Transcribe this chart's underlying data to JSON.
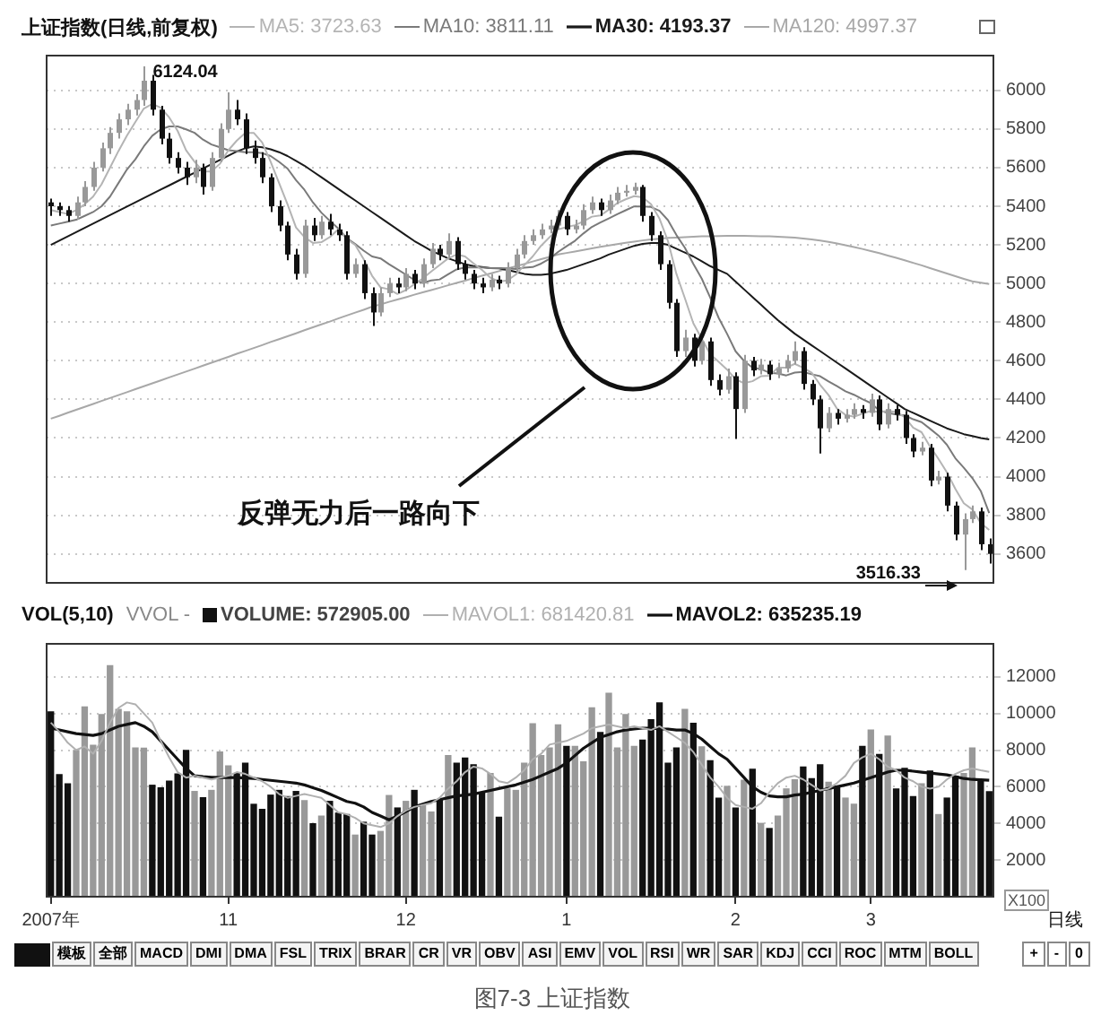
{
  "chart_data": [
    {
      "type": "candlestick",
      "title": "上证指数(日线,前复权)",
      "ohlc": [
        [
          5420,
          5440,
          5350,
          5400
        ],
        [
          5400,
          5420,
          5350,
          5380
        ],
        [
          5380,
          5400,
          5320,
          5350
        ],
        [
          5350,
          5450,
          5330,
          5420
        ],
        [
          5420,
          5530,
          5400,
          5500
        ],
        [
          5500,
          5630,
          5480,
          5600
        ],
        [
          5600,
          5730,
          5580,
          5700
        ],
        [
          5700,
          5810,
          5670,
          5780
        ],
        [
          5780,
          5880,
          5750,
          5850
        ],
        [
          5850,
          5930,
          5820,
          5900
        ],
        [
          5900,
          5980,
          5870,
          5950
        ],
        [
          5950,
          6124.04,
          5920,
          6050
        ],
        [
          6050,
          6080,
          5870,
          5900
        ],
        [
          5900,
          5920,
          5720,
          5750
        ],
        [
          5750,
          5780,
          5620,
          5650
        ],
        [
          5650,
          5680,
          5570,
          5600
        ],
        [
          5600,
          5630,
          5510,
          5550
        ],
        [
          5550,
          5640,
          5520,
          5600
        ],
        [
          5600,
          5620,
          5460,
          5500
        ],
        [
          5500,
          5680,
          5480,
          5650
        ],
        [
          5650,
          5830,
          5630,
          5800
        ],
        [
          5800,
          5990,
          5780,
          5900
        ],
        [
          5900,
          5950,
          5820,
          5850
        ],
        [
          5850,
          5880,
          5670,
          5700
        ],
        [
          5700,
          5740,
          5620,
          5650
        ],
        [
          5650,
          5680,
          5520,
          5550
        ],
        [
          5550,
          5570,
          5370,
          5400
        ],
        [
          5400,
          5430,
          5270,
          5300
        ],
        [
          5300,
          5320,
          5120,
          5150
        ],
        [
          5150,
          5180,
          5020,
          5050
        ],
        [
          5050,
          5330,
          5030,
          5300
        ],
        [
          5300,
          5340,
          5220,
          5250
        ],
        [
          5250,
          5350,
          5230,
          5320
        ],
        [
          5320,
          5360,
          5250,
          5280
        ],
        [
          5280,
          5310,
          5220,
          5250
        ],
        [
          5250,
          5270,
          5020,
          5050
        ],
        [
          5050,
          5130,
          5030,
          5100
        ],
        [
          5100,
          5120,
          4920,
          4950
        ],
        [
          4950,
          4980,
          4780,
          4850
        ],
        [
          4850,
          4980,
          4830,
          4950
        ],
        [
          4950,
          5030,
          4930,
          5000
        ],
        [
          5000,
          5030,
          4950,
          4980
        ],
        [
          4980,
          5080,
          4960,
          5050
        ],
        [
          5050,
          5070,
          4970,
          5000
        ],
        [
          5000,
          5130,
          4980,
          5100
        ],
        [
          5100,
          5210,
          5080,
          5180
        ],
        [
          5180,
          5200,
          5120,
          5150
        ],
        [
          5150,
          5260,
          5130,
          5220
        ],
        [
          5220,
          5240,
          5070,
          5100
        ],
        [
          5100,
          5120,
          5020,
          5050
        ],
        [
          5050,
          5070,
          4970,
          5000
        ],
        [
          5000,
          5030,
          4950,
          4980
        ],
        [
          4980,
          5050,
          4960,
          5020
        ],
        [
          5020,
          5040,
          4970,
          5000
        ],
        [
          5000,
          5110,
          4980,
          5080
        ],
        [
          5080,
          5180,
          5060,
          5150
        ],
        [
          5150,
          5250,
          5130,
          5220
        ],
        [
          5220,
          5280,
          5200,
          5250
        ],
        [
          5250,
          5310,
          5230,
          5280
        ],
        [
          5280,
          5330,
          5260,
          5300
        ],
        [
          5300,
          5380,
          5280,
          5350
        ],
        [
          5350,
          5370,
          5250,
          5280
        ],
        [
          5280,
          5330,
          5260,
          5300
        ],
        [
          5300,
          5410,
          5280,
          5380
        ],
        [
          5380,
          5450,
          5360,
          5420
        ],
        [
          5420,
          5440,
          5350,
          5380
        ],
        [
          5380,
          5460,
          5360,
          5430
        ],
        [
          5430,
          5500,
          5410,
          5470
        ],
        [
          5470,
          5510,
          5450,
          5480
        ],
        [
          5480,
          5522,
          5460,
          5500
        ],
        [
          5500,
          5510,
          5320,
          5350
        ],
        [
          5350,
          5370,
          5220,
          5250
        ],
        [
          5250,
          5270,
          5070,
          5100
        ],
        [
          5100,
          5120,
          4870,
          4900
        ],
        [
          4900,
          4920,
          4620,
          4650
        ],
        [
          4650,
          4760,
          4620,
          4720
        ],
        [
          4720,
          4740,
          4570,
          4600
        ],
        [
          4600,
          4730,
          4580,
          4700
        ],
        [
          4700,
          4720,
          4470,
          4500
        ],
        [
          4500,
          4530,
          4420,
          4450
        ],
        [
          4450,
          4560,
          4430,
          4520
        ],
        [
          4520,
          4540,
          4195,
          4350
        ],
        [
          4350,
          4630,
          4330,
          4600
        ],
        [
          4600,
          4620,
          4520,
          4550
        ],
        [
          4550,
          4610,
          4530,
          4580
        ],
        [
          4580,
          4600,
          4500,
          4530
        ],
        [
          4530,
          4590,
          4510,
          4560
        ],
        [
          4560,
          4630,
          4540,
          4600
        ],
        [
          4600,
          4700,
          4580,
          4650
        ],
        [
          4650,
          4670,
          4450,
          4480
        ],
        [
          4480,
          4500,
          4370,
          4400
        ],
        [
          4400,
          4420,
          4120,
          4250
        ],
        [
          4250,
          4360,
          4230,
          4330
        ],
        [
          4330,
          4350,
          4270,
          4300
        ],
        [
          4300,
          4350,
          4280,
          4320
        ],
        [
          4320,
          4380,
          4300,
          4350
        ],
        [
          4350,
          4370,
          4300,
          4330
        ],
        [
          4330,
          4430,
          4310,
          4400
        ],
        [
          4400,
          4420,
          4240,
          4270
        ],
        [
          4270,
          4380,
          4250,
          4350
        ],
        [
          4350,
          4370,
          4290,
          4320
        ],
        [
          4320,
          4340,
          4170,
          4200
        ],
        [
          4200,
          4220,
          4100,
          4130
        ],
        [
          4130,
          4180,
          4110,
          4150
        ],
        [
          4150,
          4170,
          3950,
          3980
        ],
        [
          3980,
          4030,
          3960,
          4000
        ],
        [
          4000,
          4020,
          3820,
          3850
        ],
        [
          3850,
          3870,
          3670,
          3700
        ],
        [
          3700,
          3810,
          3516.33,
          3780
        ],
        [
          3780,
          3850,
          3760,
          3820
        ],
        [
          3820,
          3840,
          3620,
          3650
        ],
        [
          3650,
          3680,
          3550,
          3600
        ]
      ],
      "colors": [
        "#111111",
        "#111111",
        "#111111",
        "#999999",
        "#999999",
        "#999999",
        "#999999",
        "#999999",
        "#999999",
        "#999999",
        "#999999",
        "#999999",
        "#111111",
        "#111111",
        "#111111",
        "#111111",
        "#111111",
        "#999999",
        "#111111",
        "#999999",
        "#999999",
        "#999999",
        "#111111",
        "#111111",
        "#111111",
        "#111111",
        "#111111",
        "#111111",
        "#111111",
        "#111111",
        "#999999",
        "#111111",
        "#999999",
        "#111111",
        "#111111",
        "#111111",
        "#999999",
        "#111111",
        "#111111",
        "#999999",
        "#999999",
        "#111111",
        "#999999",
        "#111111",
        "#999999",
        "#999999",
        "#111111",
        "#999999",
        "#111111",
        "#111111",
        "#111111",
        "#111111",
        "#999999",
        "#111111",
        "#999999",
        "#999999",
        "#999999",
        "#999999",
        "#999999",
        "#999999",
        "#999999",
        "#111111",
        "#999999",
        "#999999",
        "#999999",
        "#111111",
        "#999999",
        "#999999",
        "#999999",
        "#999999",
        "#111111",
        "#111111",
        "#111111",
        "#111111",
        "#111111",
        "#999999",
        "#111111",
        "#999999",
        "#111111",
        "#111111",
        "#999999",
        "#111111",
        "#999999",
        "#111111",
        "#999999",
        "#111111",
        "#999999",
        "#999999",
        "#999999",
        "#111111",
        "#111111",
        "#111111",
        "#999999",
        "#111111",
        "#999999",
        "#999999",
        "#111111",
        "#999999",
        "#111111",
        "#999999",
        "#111111",
        "#111111",
        "#111111",
        "#999999",
        "#111111",
        "#999999",
        "#111111",
        "#111111",
        "#999999",
        "#999999",
        "#111111",
        "#111111"
      ],
      "series": [
        {
          "name": "MA5: 3723.63",
          "type": "line",
          "color": "#b4b4b4",
          "values": [
            5380,
            5370,
            5360,
            5380,
            5410,
            5450,
            5514,
            5600,
            5686,
            5766,
            5836,
            5906,
            5930,
            5910,
            5860,
            5790,
            5690,
            5630,
            5580,
            5580,
            5620,
            5690,
            5740,
            5780,
            5780,
            5730,
            5630,
            5520,
            5410,
            5290,
            5240,
            5210,
            5214,
            5240,
            5280,
            5230,
            5200,
            5126,
            5040,
            4980,
            4970,
            4946,
            4966,
            4996,
            5026,
            5062,
            5096,
            5130,
            5150,
            5140,
            5104,
            5070,
            5030,
            5010,
            5016,
            5046,
            5094,
            5140,
            5196,
            5240,
            5280,
            5292,
            5302,
            5322,
            5346,
            5352,
            5382,
            5416,
            5436,
            5452,
            5446,
            5410,
            5336,
            5220,
            5050,
            4924,
            4794,
            4714,
            4634,
            4594,
            4554,
            4504,
            4484,
            4494,
            4520,
            4522,
            4564,
            4564,
            4584,
            4564,
            4538,
            4476,
            4422,
            4352,
            4320,
            4310,
            4326,
            4340,
            4334,
            4340,
            4334,
            4308,
            4254,
            4230,
            4156,
            4092,
            4022,
            3936,
            3862,
            3830,
            3760,
            3723.63
          ]
        },
        {
          "name": "MA10: 3811.11",
          "type": "line",
          "color": "#7a7a7a",
          "values": [
            5300,
            5310,
            5320,
            5330,
            5350,
            5370,
            5400,
            5450,
            5520,
            5590,
            5643,
            5710,
            5765,
            5798,
            5813,
            5813,
            5798,
            5780,
            5745,
            5720,
            5705,
            5690,
            5685,
            5680,
            5680,
            5675,
            5660,
            5630,
            5595,
            5535,
            5485,
            5420,
            5367,
            5325,
            5285,
            5235,
            5205,
            5170,
            5140,
            5130,
            5100,
            5073,
            5046,
            5018,
            5003,
            5016,
            5021,
            5048,
            5073,
            5083,
            5083,
            5083,
            5080,
            5080,
            5078,
            5075,
            5082,
            5085,
            5103,
            5128,
            5163,
            5193,
            5221,
            5259,
            5293,
            5316,
            5337,
            5359,
            5379,
            5399,
            5399,
            5396,
            5376,
            5328,
            5251,
            5185,
            5102,
            5025,
            4927,
            4822,
            4739,
            4649,
            4599,
            4564,
            4557,
            4538,
            4534,
            4524,
            4539,
            4542,
            4530,
            4520,
            4493,
            4468,
            4442,
            4424,
            4401,
            4381,
            4343,
            4330,
            4322,
            4317,
            4297,
            4282,
            4248,
            4213,
            4165,
            4095,
            4046,
            3993,
            3926,
            3811.11
          ]
        },
        {
          "name": "MA30: 4193.37",
          "type": "line",
          "color": "#1a1a1a",
          "values": [
            5200,
            5222,
            5244,
            5266,
            5288,
            5310,
            5332,
            5354,
            5376,
            5398,
            5420,
            5442,
            5464,
            5486,
            5508,
            5530,
            5552,
            5574,
            5596,
            5618,
            5640,
            5662,
            5684,
            5700,
            5710,
            5705,
            5695,
            5680,
            5660,
            5635,
            5610,
            5580,
            5550,
            5520,
            5490,
            5460,
            5430,
            5400,
            5370,
            5340,
            5310,
            5280,
            5250,
            5220,
            5195,
            5170,
            5150,
            5130,
            5115,
            5100,
            5090,
            5085,
            5080,
            5078,
            5070,
            5060,
            5050,
            5045,
            5045,
            5050,
            5060,
            5070,
            5085,
            5100,
            5115,
            5130,
            5150,
            5165,
            5180,
            5195,
            5205,
            5210,
            5210,
            5200,
            5180,
            5160,
            5140,
            5115,
            5090,
            5070,
            5050,
            5010,
            4970,
            4930,
            4890,
            4850,
            4810,
            4775,
            4740,
            4710,
            4680,
            4650,
            4620,
            4590,
            4560,
            4530,
            4500,
            4470,
            4440,
            4410,
            4380,
            4350,
            4330,
            4310,
            4290,
            4270,
            4250,
            4235,
            4220,
            4210,
            4200,
            4193.37
          ]
        },
        {
          "name": "MA120: 4997.37",
          "type": "line",
          "color": "#a8a8a8",
          "values": [
            4300,
            4315,
            4331,
            4346,
            4361,
            4376,
            4392,
            4407,
            4422,
            4437,
            4453,
            4468,
            4483,
            4498,
            4514,
            4529,
            4544,
            4559,
            4575,
            4590,
            4605,
            4620,
            4636,
            4651,
            4666,
            4681,
            4697,
            4712,
            4727,
            4742,
            4758,
            4773,
            4788,
            4803,
            4819,
            4834,
            4849,
            4864,
            4880,
            4892,
            4905,
            4917,
            4929,
            4942,
            4954,
            4966,
            4978,
            4991,
            5003,
            5015,
            5028,
            5040,
            5052,
            5064,
            5077,
            5089,
            5101,
            5114,
            5126,
            5138,
            5150,
            5158,
            5166,
            5174,
            5182,
            5190,
            5197,
            5204,
            5211,
            5217,
            5223,
            5228,
            5232,
            5236,
            5238,
            5240,
            5242,
            5244,
            5245,
            5246,
            5247,
            5247,
            5247,
            5246,
            5245,
            5244,
            5242,
            5240,
            5237,
            5233,
            5228,
            5222,
            5215,
            5207,
            5198,
            5189,
            5179,
            5168,
            5157,
            5145,
            5133,
            5120,
            5107,
            5094,
            5080,
            5066,
            5052,
            5038,
            5024,
            5011,
            5004,
            4997.37
          ]
        }
      ],
      "ylim": [
        3450,
        6180
      ],
      "yticks": [
        3600,
        3800,
        4000,
        4200,
        4400,
        4600,
        4800,
        5000,
        5200,
        5400,
        5600,
        5800,
        6000
      ],
      "grid": "y",
      "legend": "top",
      "tick_labels": "y",
      "annotations": [
        "6124.04",
        "3516.33",
        "反弹无力后一路向下"
      ]
    },
    {
      "type": "bar",
      "title": "VOL(5,10)",
      "subtitle": "VVOL -",
      "categories": [
        "2007年",
        null,
        null,
        null,
        null,
        null,
        null,
        null,
        null,
        null,
        null,
        null,
        null,
        null,
        null,
        null,
        null,
        null,
        null,
        null,
        null,
        "11",
        null,
        null,
        null,
        null,
        null,
        null,
        null,
        null,
        null,
        null,
        null,
        null,
        null,
        null,
        null,
        null,
        null,
        null,
        null,
        null,
        "12",
        null,
        null,
        null,
        null,
        null,
        null,
        null,
        null,
        null,
        null,
        null,
        null,
        null,
        null,
        null,
        null,
        null,
        null,
        "1",
        null,
        null,
        null,
        null,
        null,
        null,
        null,
        null,
        null,
        null,
        null,
        null,
        null,
        null,
        null,
        null,
        null,
        null,
        null,
        "2",
        null,
        null,
        null,
        null,
        null,
        null,
        null,
        null,
        null,
        null,
        null,
        null,
        null,
        null,
        null,
        "3",
        null,
        null,
        null,
        null,
        null,
        null,
        null,
        null,
        null,
        null,
        null,
        null,
        null,
        null
      ],
      "series": [
        {
          "name": "VOLUME: 572905.00",
          "type": "bar",
          "colors": [
            "#111111",
            "#111111",
            "#111111",
            "#999999",
            "#999999",
            "#999999",
            "#999999",
            "#999999",
            "#999999",
            "#999999",
            "#999999",
            "#999999",
            "#111111",
            "#111111",
            "#111111",
            "#111111",
            "#111111",
            "#999999",
            "#111111",
            "#999999",
            "#999999",
            "#999999",
            "#111111",
            "#111111",
            "#111111",
            "#111111",
            "#111111",
            "#111111",
            "#111111",
            "#111111",
            "#999999",
            "#111111",
            "#999999",
            "#111111",
            "#111111",
            "#111111",
            "#999999",
            "#111111",
            "#111111",
            "#999999",
            "#999999",
            "#111111",
            "#999999",
            "#111111",
            "#999999",
            "#999999",
            "#111111",
            "#999999",
            "#111111",
            "#111111",
            "#111111",
            "#111111",
            "#999999",
            "#111111",
            "#999999",
            "#999999",
            "#999999",
            "#999999",
            "#999999",
            "#999999",
            "#999999",
            "#111111",
            "#999999",
            "#999999",
            "#999999",
            "#111111",
            "#999999",
            "#999999",
            "#999999",
            "#999999",
            "#111111",
            "#111111",
            "#111111",
            "#111111",
            "#111111",
            "#999999",
            "#111111",
            "#999999",
            "#111111",
            "#111111",
            "#999999",
            "#111111",
            "#999999",
            "#111111",
            "#999999",
            "#111111",
            "#999999",
            "#999999",
            "#999999",
            "#111111",
            "#111111",
            "#111111",
            "#999999",
            "#111111",
            "#999999",
            "#999999",
            "#111111",
            "#999999",
            "#111111",
            "#999999",
            "#111111",
            "#111111",
            "#111111",
            "#999999",
            "#111111",
            "#999999",
            "#111111",
            "#111111",
            "#999999",
            "#999999",
            "#111111",
            "#111111"
          ],
          "values": [
            10080,
            6660,
            6160,
            7980,
            10360,
            8260,
            9940,
            12600,
            10220,
            10080,
            8120,
            8100,
            6080,
            5940,
            6300,
            6700,
            7980,
            5740,
            5400,
            5800,
            7900,
            7140,
            6720,
            7280,
            5040,
            4760,
            5540,
            5800,
            5460,
            5740,
            5240,
            3980,
            4400,
            5200,
            4560,
            4480,
            3360,
            4060,
            3360,
            3560,
            5520,
            4840,
            5200,
            5800,
            5040,
            4620,
            5260,
            7700,
            7280,
            7560,
            7200,
            5660,
            6720,
            4340,
            5880,
            5800,
            7280,
            9440,
            7700,
            8120,
            9380,
            8200,
            8200,
            7360,
            10300,
            8960,
            11100,
            8120,
            9940,
            8200,
            8540,
            9660,
            10580,
            7280,
            8120,
            10220,
            9460,
            8180,
            7420,
            5380,
            6020,
            4840,
            6360,
            6950,
            4000,
            3720,
            4400,
            5880,
            6380,
            7080,
            6440,
            7200,
            6240,
            6020,
            5380,
            5040,
            8200,
            9100,
            7760,
            8760,
            5880,
            7000,
            5460,
            6160,
            6860,
            4480,
            5380,
            6580,
            6720,
            8120,
            6380,
            5729.05
          ]
        },
        {
          "name": "MAVOL1: 681420.81",
          "type": "line",
          "color": "#b0b0b0",
          "values": [
            9500,
            9000,
            8400,
            8000,
            8200,
            7800,
            8500,
            9500,
            10300,
            10600,
            10500,
            10000,
            9500,
            8500,
            7600,
            6800,
            6500,
            6600,
            6500,
            6400,
            6500,
            6600,
            6800,
            6700,
            6500,
            6300,
            6000,
            5600,
            5400,
            5500,
            5600,
            5500,
            5400,
            5000,
            4600,
            4500,
            4300,
            4000,
            3900,
            3800,
            4000,
            4400,
            4700,
            4900,
            5000,
            5100,
            5400,
            5900,
            6300,
            6800,
            7100,
            7000,
            6700,
            6300,
            6200,
            6500,
            6900,
            7500,
            7800,
            8300,
            8400,
            8500,
            8700,
            8900,
            9200,
            9300,
            9400,
            9300,
            9200,
            9300,
            9200,
            9100,
            9300,
            9000,
            8700,
            8400,
            7900,
            7200,
            6500,
            6000,
            5400,
            5000,
            4900,
            4800,
            5100,
            5700,
            6200,
            6500,
            6600,
            6400,
            6100,
            5800,
            5900,
            6200,
            6600,
            7300,
            7600,
            7800,
            7500,
            7100,
            6900,
            6500,
            6300,
            6000,
            5900,
            6000,
            6400,
            6700,
            6900,
            7000,
            6900,
            6814.21
          ]
        },
        {
          "name": "MAVOL2: 635235.19",
          "type": "line",
          "color": "#111111",
          "values": [
            9200,
            9100,
            9000,
            8900,
            8850,
            8800,
            8900,
            9100,
            9300,
            9400,
            9500,
            9300,
            9000,
            8500,
            8000,
            7500,
            7000,
            6600,
            6550,
            6520,
            6500,
            6500,
            6500,
            6480,
            6450,
            6400,
            6350,
            6300,
            6250,
            6200,
            6100,
            5950,
            5800,
            5600,
            5400,
            5200,
            5100,
            4900,
            4600,
            4400,
            4200,
            4400,
            4650,
            4900,
            5050,
            5200,
            5300,
            5400,
            5500,
            5550,
            5600,
            5700,
            5800,
            5900,
            6000,
            6100,
            6250,
            6400,
            6600,
            6800,
            7000,
            7300,
            7700,
            8100,
            8400,
            8700,
            8850,
            9000,
            9100,
            9150,
            9200,
            9200,
            9150,
            9150,
            9100,
            9100,
            8900,
            8600,
            8200,
            7800,
            7500,
            7000,
            6500,
            6000,
            5700,
            5500,
            5450,
            5450,
            5550,
            5600,
            5700,
            5800,
            5900,
            6000,
            6100,
            6200,
            6350,
            6500,
            6650,
            6800,
            6900,
            6900,
            6850,
            6800,
            6750,
            6700,
            6650,
            6550,
            6450,
            6400,
            6380,
            6352.35
          ]
        }
      ],
      "ylim": [
        0,
        13800
      ],
      "yticks": [
        2000,
        4000,
        6000,
        8000,
        10000,
        12000
      ],
      "grid": "y",
      "legend": "top left",
      "annotations": [
        "X100",
        "模板",
        "全部",
        "MACD",
        "DMI",
        "DMA",
        "FSL",
        "TRIX",
        "BRAR",
        "CR",
        "VR",
        "OBV",
        "ASI",
        "EMV",
        "VOL",
        "RSI",
        "WR",
        "SAR",
        "KDJ",
        "CCI",
        "ROC",
        "MTM",
        "BOLL",
        "日线",
        "+",
        "-",
        "0",
        "图7-3  上证指数"
      ]
    }
  ]
}
